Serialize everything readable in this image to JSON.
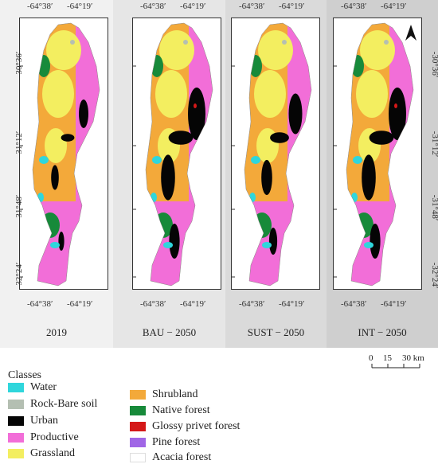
{
  "panels": [
    {
      "title": "2019",
      "bg": "#f1f1f1"
    },
    {
      "title": "BAU − 2050",
      "bg": "#e6e6e6"
    },
    {
      "title": "SUST − 2050",
      "bg": "#dadada"
    },
    {
      "title": "INT − 2050",
      "bg": "#cfcfcf"
    }
  ],
  "lon_ticks": [
    "-64°38′",
    "-64°19′"
  ],
  "lat_ticks": [
    "-30°36′",
    "-31°12′",
    "-31°48′",
    "-32°24′"
  ],
  "north_arrow": "A",
  "scale": {
    "labels": [
      "0",
      "15",
      "30 km"
    ]
  },
  "legend": {
    "title": "Classes",
    "items": [
      {
        "label": "Water",
        "color": "#2fd6dc"
      },
      {
        "label": "Rock-Bare soil",
        "color": "#b4bfb2"
      },
      {
        "label": "Urban",
        "color": "#050505"
      },
      {
        "label": "Productive",
        "color": "#f26ed8"
      },
      {
        "label": "Grassland",
        "color": "#f3ee60"
      },
      {
        "label": "Shrubland",
        "color": "#f3a93a"
      },
      {
        "label": "Native forest",
        "color": "#178a3a"
      },
      {
        "label": "Glossy privet forest",
        "color": "#d41818"
      },
      {
        "label": "Pine forest",
        "color": "#a066e6"
      },
      {
        "label": "Acacia forest",
        "color": "#ffffff"
      }
    ]
  }
}
